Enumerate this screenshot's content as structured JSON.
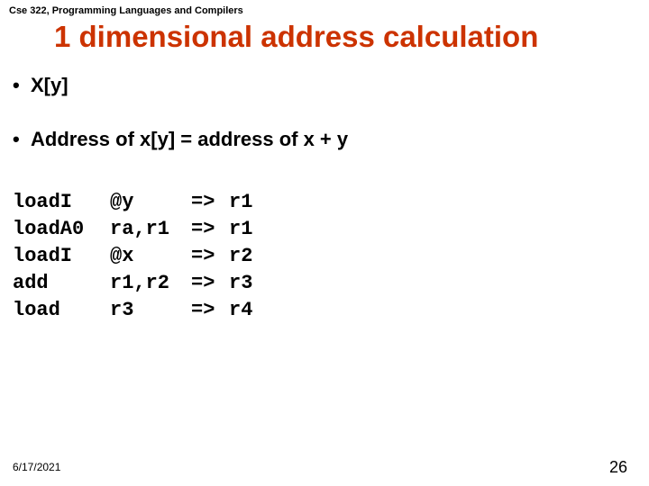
{
  "course_header": "Cse 322, Programming Languages and Compilers",
  "title": "1 dimensional address calculation",
  "title_color": "#cc3300",
  "bullets": {
    "b1": "X[y]",
    "b2": "Address of x[y]  =  address of x  +  y"
  },
  "code": {
    "rows": [
      {
        "op": "loadI",
        "args": "@y",
        "arrow": "=>",
        "dst": "r1"
      },
      {
        "op": "loadA0",
        "args": "ra,r1",
        "arrow": "=>",
        "dst": "r1"
      },
      {
        "op": "loadI",
        "args": "@x",
        "arrow": "=>",
        "dst": "r2"
      },
      {
        "op": "add",
        "args": "r1,r2",
        "arrow": "=>",
        "dst": "r3"
      },
      {
        "op": "load",
        "args": "r3",
        "arrow": "=>",
        "dst": "r4"
      }
    ]
  },
  "footer": {
    "date": "6/17/2021",
    "page": "26"
  },
  "colors": {
    "background": "#ffffff",
    "text": "#000000"
  }
}
